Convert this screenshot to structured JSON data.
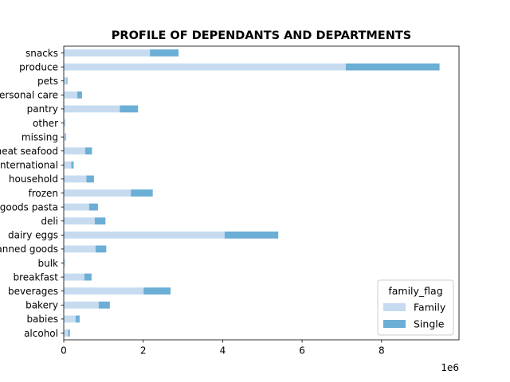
{
  "chart_data": {
    "type": "bar",
    "orientation": "horizontal",
    "stacked": true,
    "title": "PROFILE OF DEPENDANTS AND DEPARTMENTS",
    "xlabel": "",
    "ylabel": "",
    "x_scale_label": "1e6",
    "x_ticks": [
      0,
      2,
      4,
      6,
      8
    ],
    "x_tick_labels": [
      "0",
      "2",
      "4",
      "6",
      "8"
    ],
    "xlim": [
      0,
      9.95
    ],
    "grid": false,
    "categories": [
      "alcohol",
      "babies",
      "bakery",
      "beverages",
      "breakfast",
      "bulk",
      "canned goods",
      "dairy eggs",
      "deli",
      "dry goods pasta",
      "frozen",
      "household",
      "international",
      "meat seafood",
      "missing",
      "other",
      "pantry",
      "personal care",
      "pets",
      "produce",
      "snacks"
    ],
    "series": [
      {
        "name": "Family",
        "color": "#c6dbef",
        "values": [
          0.11,
          0.3,
          0.88,
          2.01,
          0.52,
          0.025,
          0.8,
          4.05,
          0.78,
          0.64,
          1.69,
          0.57,
          0.19,
          0.54,
          0.045,
          0.026,
          1.41,
          0.34,
          0.068,
          7.1,
          2.17
        ]
      },
      {
        "name": "Single",
        "color": "#6baed6",
        "values": [
          0.045,
          0.1,
          0.28,
          0.68,
          0.18,
          0.006,
          0.27,
          1.35,
          0.27,
          0.22,
          0.55,
          0.19,
          0.06,
          0.17,
          0.017,
          0.009,
          0.46,
          0.12,
          0.024,
          2.36,
          0.72
        ]
      }
    ],
    "legend": {
      "title": "family_flag",
      "position": "bottom-right"
    }
  }
}
